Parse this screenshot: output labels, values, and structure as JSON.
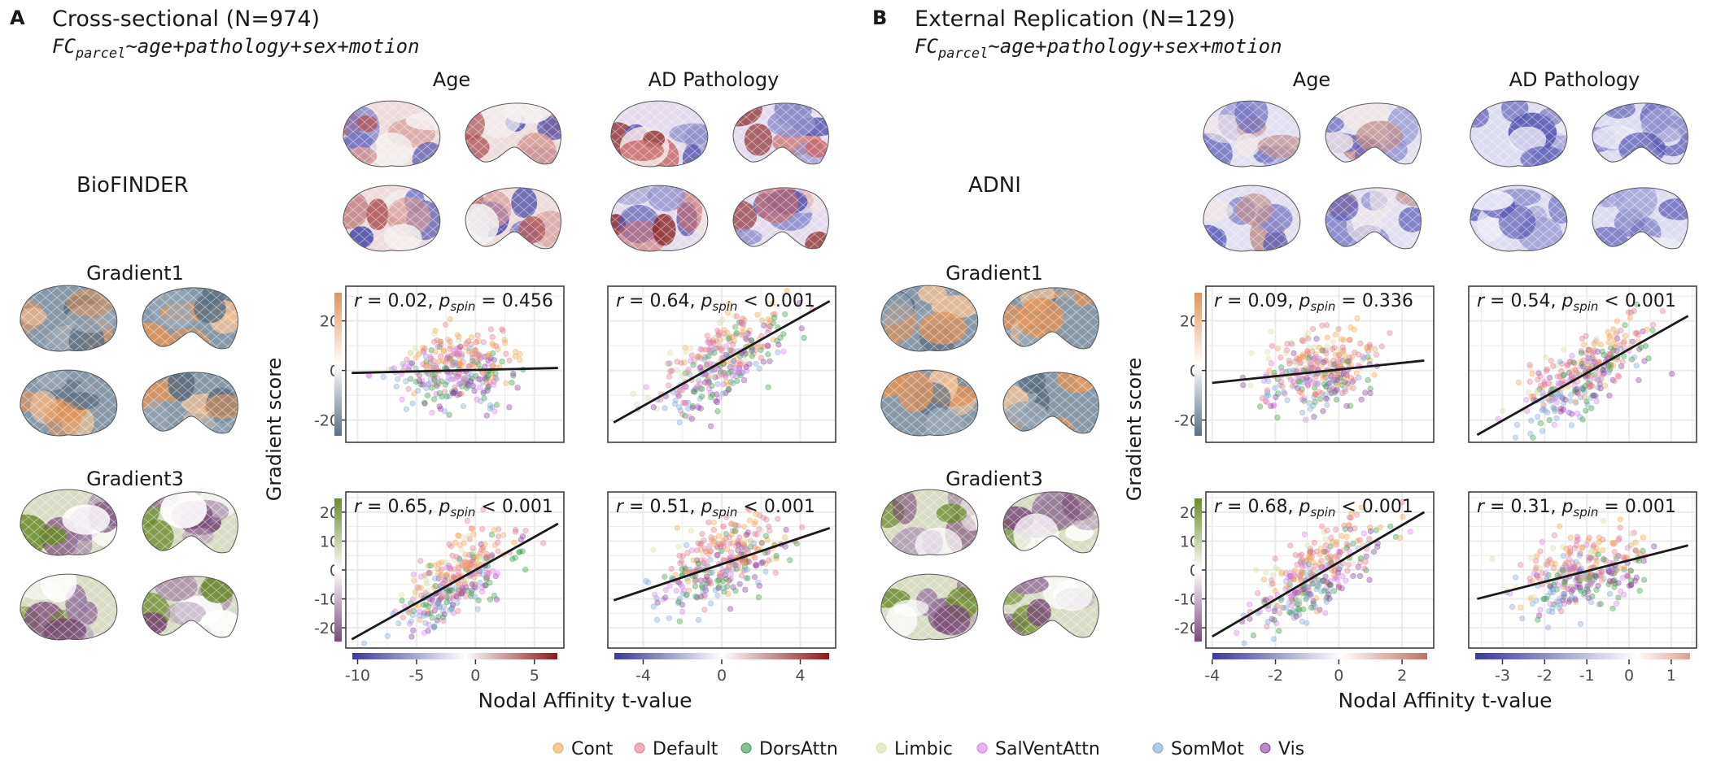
{
  "panels": [
    {
      "letter": "A",
      "title": "Cross-sectional (N=974)",
      "formula": "FC",
      "formula_sub": "parcel",
      "formula_rest": "~age+pathology+sex+motion",
      "cohort": "BioFINDER",
      "col_headers": [
        "Age",
        "AD Pathology"
      ],
      "row_headers": [
        "Gradient1",
        "Gradient3"
      ],
      "ylabel": "Gradient score",
      "xlabel": "Nodal Affinity t-value"
    },
    {
      "letter": "B",
      "title": "External Replication (N=129)",
      "formula": "FC",
      "formula_sub": "parcel",
      "formula_rest": "~age+pathology+sex+motion",
      "cohort": "ADNI",
      "col_headers": [
        "Age",
        "AD Pathology"
      ],
      "row_headers": [
        "Gradient1",
        "Gradient3"
      ],
      "ylabel": "Gradient score",
      "xlabel": "Nodal Affinity t-value"
    }
  ],
  "colors": {
    "Cont": "#f3a64f",
    "Default": "#e07a8e",
    "DorsAttn": "#3a9a48",
    "Limbic": "#d6e0a8",
    "SalVentAttn": "#d77ee8",
    "SomMot": "#7fa6d6",
    "Vis": "#8a3e9c",
    "div_neg": "#3a3a9a",
    "div_pos": "#8b1a1a",
    "grad1_pos": "#e0945a",
    "grad1_neg": "#5a6f82",
    "grad3_pos": "#6b8a2a",
    "grad3_neg": "#7a4a78"
  },
  "legend": [
    "Cont",
    "Default",
    "DorsAttn",
    "Limbic",
    "SalVentAttn",
    "SomMot",
    "Vis"
  ],
  "chart_data": [
    {
      "id": "A-g1-age",
      "type": "scatter",
      "panel": "A",
      "row": "Gradient1",
      "col": "Age",
      "annotation": {
        "r": "r = 0.02",
        "p": "= 0.456"
      },
      "xlim": [
        -11,
        7.5
      ],
      "ylim": [
        -29,
        34
      ],
      "yticks": [
        -20,
        0,
        20
      ],
      "xticks": [
        -10,
        -5,
        0,
        5
      ],
      "fit": {
        "x": [
          -10.5,
          7
        ],
        "y": [
          -1,
          1
        ]
      },
      "grid": true
    },
    {
      "id": "A-g1-ad",
      "type": "scatter",
      "panel": "A",
      "row": "Gradient1",
      "col": "AD Pathology",
      "annotation": {
        "r": "r = 0.64",
        "p": "< 0.001"
      },
      "xlim": [
        -5.8,
        5.8
      ],
      "ylim": [
        -29,
        34
      ],
      "yticks": [
        -20,
        0,
        20
      ],
      "xticks": [
        -4,
        0,
        4
      ],
      "fit": {
        "x": [
          -5.5,
          5.5
        ],
        "y": [
          -21,
          28
        ]
      },
      "grid": true
    },
    {
      "id": "A-g3-age",
      "type": "scatter",
      "panel": "A",
      "row": "Gradient3",
      "col": "Age",
      "annotation": {
        "r": "r = 0.65",
        "p": "< 0.001"
      },
      "xlim": [
        -11,
        7.5
      ],
      "ylim": [
        -27,
        27
      ],
      "yticks": [
        -20,
        -10,
        0,
        10,
        20
      ],
      "xticks": [
        -10,
        -5,
        0,
        5
      ],
      "fit": {
        "x": [
          -10.5,
          7
        ],
        "y": [
          -24,
          16
        ]
      },
      "grid": true
    },
    {
      "id": "A-g3-ad",
      "type": "scatter",
      "panel": "A",
      "row": "Gradient3",
      "col": "AD Pathology",
      "annotation": {
        "r": "r = 0.51",
        "p": "< 0.001"
      },
      "xlim": [
        -5.8,
        5.8
      ],
      "ylim": [
        -27,
        27
      ],
      "yticks": [
        -20,
        -10,
        0,
        10,
        20
      ],
      "xticks": [
        -4,
        0,
        4
      ],
      "fit": {
        "x": [
          -5.5,
          5.5
        ],
        "y": [
          -10.5,
          14.5
        ]
      },
      "grid": true
    },
    {
      "id": "B-g1-age",
      "type": "scatter",
      "panel": "B",
      "row": "Gradient1",
      "col": "Age",
      "annotation": {
        "r": "r = 0.09",
        "p": "= 0.336"
      },
      "xlim": [
        -4.2,
        3
      ],
      "ylim": [
        -29,
        34
      ],
      "yticks": [
        -20,
        0,
        20
      ],
      "xticks": [
        -4,
        -2,
        0,
        2
      ],
      "fit": {
        "x": [
          -4,
          2.7
        ],
        "y": [
          -5,
          4
        ]
      },
      "grid": true
    },
    {
      "id": "B-g1-ad",
      "type": "scatter",
      "panel": "B",
      "row": "Gradient1",
      "col": "AD Pathology",
      "annotation": {
        "r": "r = 0.54",
        "p": "< 0.001"
      },
      "xlim": [
        -3.8,
        1.6
      ],
      "ylim": [
        -29,
        34
      ],
      "yticks": [
        -20,
        0,
        20
      ],
      "xticks": [
        -3,
        -2,
        -1,
        0,
        1
      ],
      "fit": {
        "x": [
          -3.6,
          1.4
        ],
        "y": [
          -26,
          22
        ]
      },
      "grid": true
    },
    {
      "id": "B-g3-age",
      "type": "scatter",
      "panel": "B",
      "row": "Gradient3",
      "col": "Age",
      "annotation": {
        "r": "r = 0.68",
        "p": "< 0.001"
      },
      "xlim": [
        -4.2,
        3
      ],
      "ylim": [
        -27,
        27
      ],
      "yticks": [
        -20,
        -10,
        0,
        10,
        20
      ],
      "xticks": [
        -4,
        -2,
        0,
        2
      ],
      "fit": {
        "x": [
          -4,
          2.7
        ],
        "y": [
          -23,
          20
        ]
      },
      "grid": true
    },
    {
      "id": "B-g3-ad",
      "type": "scatter",
      "panel": "B",
      "row": "Gradient3",
      "col": "AD Pathology",
      "annotation": {
        "r": "r = 0.31",
        "p": "= 0.001"
      },
      "xlim": [
        -3.8,
        1.6
      ],
      "ylim": [
        -27,
        27
      ],
      "yticks": [
        -20,
        -10,
        0,
        10,
        20
      ],
      "xticks": [
        -3,
        -2,
        -1,
        0,
        1
      ],
      "fit": {
        "x": [
          -3.6,
          1.4
        ],
        "y": [
          -10,
          8.5
        ]
      },
      "grid": true
    }
  ]
}
